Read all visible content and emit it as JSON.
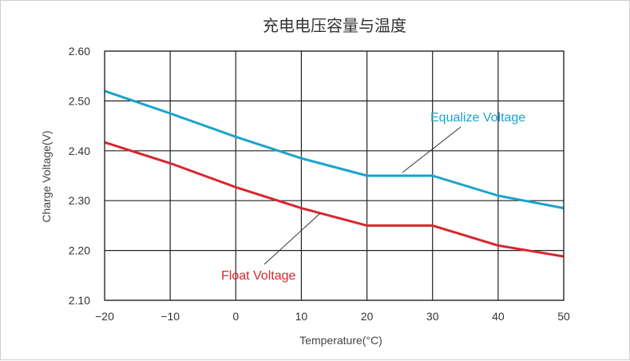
{
  "chart_data": {
    "type": "line",
    "title": "充电电压容量与温度",
    "xlabel": "Temperature(°C)",
    "ylabel": "Charge Voltage(V)",
    "x_ticks": [
      "−20",
      "−10",
      "0",
      "10",
      "20",
      "30",
      "40",
      "50"
    ],
    "y_ticks": [
      "2.10",
      "2.20",
      "2.30",
      "2.40",
      "2.50",
      "2.60"
    ],
    "xlim": [
      -20,
      50
    ],
    "ylim": [
      2.1,
      2.6
    ],
    "grid": true,
    "series": [
      {
        "name": "Equalize Voltage",
        "color": "#1aa3cc",
        "x": [
          -20,
          -10,
          0,
          10,
          20,
          30,
          40,
          50
        ],
        "y": [
          2.52,
          2.475,
          2.428,
          2.385,
          2.35,
          2.35,
          2.31,
          2.285
        ]
      },
      {
        "name": "Float Voltage",
        "color": "#d8262e",
        "x": [
          -20,
          -10,
          0,
          10,
          20,
          30,
          40,
          50
        ],
        "y": [
          2.417,
          2.375,
          2.327,
          2.285,
          2.25,
          2.25,
          2.21,
          2.188
        ]
      }
    ]
  }
}
